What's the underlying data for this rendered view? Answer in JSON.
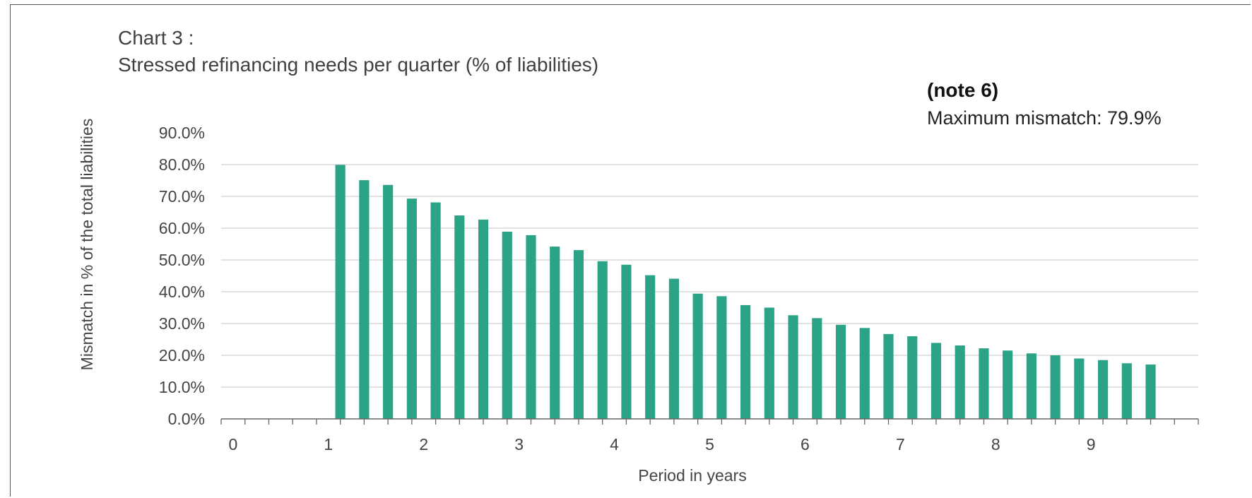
{
  "header": {
    "chart_number": "Chart 3 :",
    "title": "Stressed refinancing needs per quarter  (% of liabilities)"
  },
  "annotation": {
    "note": "(note 6)",
    "text": "Maximum mismatch: 79.9%"
  },
  "colors": {
    "bar": "#2ba386",
    "grid": "#d0d0d0",
    "axis": "#666666"
  },
  "chart_data": {
    "type": "bar",
    "title": "Stressed refinancing needs per quarter  (% of liabilities)",
    "xlabel": "Period in years",
    "ylabel": "Mismatch in % of the total liabilities",
    "xlim": [
      0,
      10.25
    ],
    "ylim": [
      0,
      90
    ],
    "x_ticks": [
      "0",
      "1",
      "2",
      "3",
      "4",
      "5",
      "6",
      "7",
      "8",
      "9"
    ],
    "y_ticks": [
      "0.0%",
      "10.0%",
      "20.0%",
      "30.0%",
      "40.0%",
      "50.0%",
      "60.0%",
      "70.0%",
      "80.0%",
      "90.0%"
    ],
    "grid": true,
    "x": [
      1.25,
      1.5,
      1.75,
      2.0,
      2.25,
      2.5,
      2.75,
      3.0,
      3.25,
      3.5,
      3.75,
      4.0,
      4.25,
      4.5,
      4.75,
      5.0,
      5.25,
      5.5,
      5.75,
      6.0,
      6.25,
      6.5,
      6.75,
      7.0,
      7.25,
      7.5,
      7.75,
      8.0,
      8.25,
      8.5,
      8.75,
      9.0,
      9.25,
      9.5,
      9.75
    ],
    "values": [
      79.9,
      75.1,
      73.6,
      69.3,
      68.1,
      64.0,
      62.7,
      58.9,
      57.8,
      54.2,
      53.1,
      49.6,
      48.5,
      45.2,
      44.1,
      39.4,
      38.6,
      35.8,
      35.0,
      32.6,
      31.7,
      29.6,
      28.6,
      26.7,
      26.0,
      23.9,
      23.1,
      22.2,
      21.5,
      20.6,
      20.0,
      19.0,
      18.5,
      17.5,
      17.1
    ]
  }
}
